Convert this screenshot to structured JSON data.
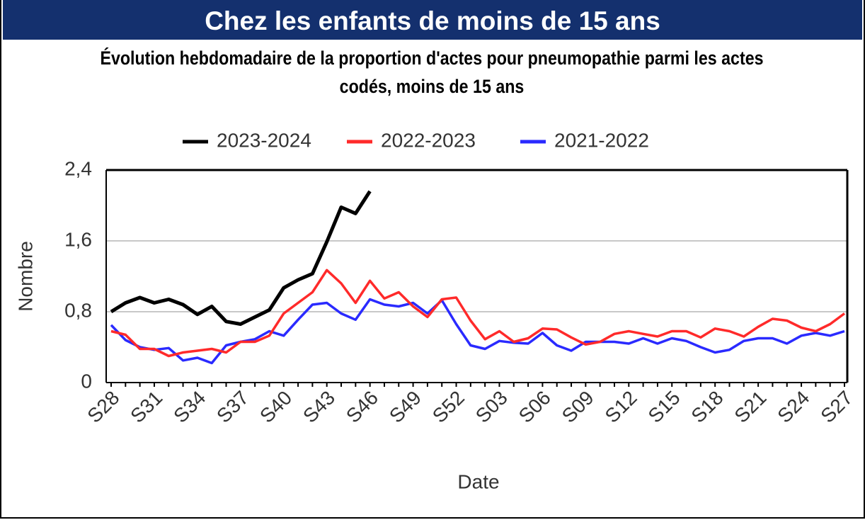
{
  "header": "Chez les enfants de moins de 15 ans",
  "chart_data": {
    "type": "line",
    "title": "Évolution hebdomadaire de la proportion d'actes pour pneumopathie parmi les actes codés, moins de 15 ans",
    "y_label": "Nombre",
    "x_label": "Date",
    "categories": [
      "S28",
      null,
      null,
      "S31",
      null,
      null,
      "S34",
      null,
      null,
      "S37",
      null,
      null,
      "S40",
      null,
      null,
      "S43",
      null,
      null,
      "S46",
      null,
      null,
      "S49",
      null,
      null,
      "S52",
      null,
      null,
      "S03",
      null,
      null,
      "S06",
      null,
      null,
      "S09",
      null,
      null,
      "S12",
      null,
      null,
      "S15",
      null,
      null,
      "S18",
      null,
      null,
      "S21",
      null,
      null,
      "S24",
      null,
      null,
      "S27"
    ],
    "ylim": [
      0,
      2.4
    ],
    "yticks": [
      0,
      {
        "value": 0.8,
        "label": "0,8"
      },
      {
        "value": 1.6,
        "label": "1,6"
      },
      {
        "value": 2.4,
        "label": "2,4"
      }
    ],
    "grid": true,
    "legend": "top",
    "series": [
      {
        "name": "2023-2024",
        "color": "#000000",
        "values": [
          0.8,
          0.9,
          0.96,
          0.9,
          0.94,
          0.88,
          0.77,
          0.86,
          0.69,
          0.66,
          0.74,
          0.82,
          1.07,
          1.16,
          1.23,
          1.59,
          1.98,
          1.91,
          2.16,
          null,
          null,
          null,
          null,
          null,
          null,
          null,
          null,
          null,
          null,
          null,
          null,
          null,
          null,
          null,
          null,
          null,
          null,
          null,
          null,
          null,
          null,
          null,
          null,
          null,
          null,
          null,
          null,
          null,
          null,
          null,
          null,
          null
        ]
      },
      {
        "name": "2022-2023",
        "color": "#ff2a2a",
        "values": [
          0.58,
          0.54,
          0.38,
          0.38,
          0.3,
          0.34,
          0.36,
          0.38,
          0.34,
          0.46,
          0.46,
          0.53,
          0.78,
          0.9,
          1.02,
          1.27,
          1.12,
          0.9,
          1.15,
          0.95,
          1.02,
          0.86,
          0.74,
          0.94,
          0.96,
          0.7,
          0.49,
          0.58,
          0.46,
          0.5,
          0.61,
          0.6,
          0.51,
          0.43,
          0.46,
          0.55,
          0.58,
          0.55,
          0.52,
          0.58,
          0.58,
          0.51,
          0.61,
          0.58,
          0.52,
          0.63,
          0.72,
          0.7,
          0.62,
          0.58,
          0.66,
          0.78
        ]
      },
      {
        "name": "2021-2022",
        "color": "#2a2aff",
        "values": [
          0.65,
          0.48,
          0.4,
          0.37,
          0.39,
          0.25,
          0.28,
          0.22,
          0.42,
          0.46,
          0.49,
          0.58,
          0.53,
          0.71,
          0.88,
          0.9,
          0.78,
          0.71,
          0.94,
          0.88,
          0.86,
          0.9,
          0.78,
          0.93,
          0.66,
          0.42,
          0.38,
          0.47,
          0.45,
          0.44,
          0.56,
          0.42,
          0.36,
          0.46,
          0.46,
          0.46,
          0.44,
          0.5,
          0.44,
          0.5,
          0.47,
          0.4,
          0.34,
          0.37,
          0.47,
          0.5,
          0.5,
          0.44,
          0.53,
          0.56,
          0.53,
          0.58
        ]
      }
    ]
  }
}
